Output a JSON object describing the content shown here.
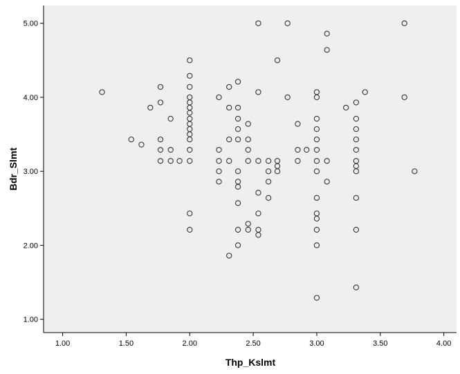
{
  "chart_data": {
    "type": "scatter",
    "title": "",
    "xlabel": "Thp_Kslmt",
    "ylabel": "Bdr_Slmt",
    "xlim": [
      0.85,
      4.1
    ],
    "ylim": [
      0.82,
      5.24
    ],
    "xticks": [
      "1.00",
      "1.50",
      "2.00",
      "2.50",
      "3.00",
      "3.50",
      "4.00"
    ],
    "xtick_values": [
      1.0,
      1.5,
      2.0,
      2.5,
      3.0,
      3.5,
      4.0
    ],
    "yticks": [
      "1.00",
      "2.00",
      "3.00",
      "4.00",
      "5.00"
    ],
    "ytick_values": [
      1.0,
      2.0,
      3.0,
      4.0,
      5.0
    ],
    "grid": false,
    "plot_background": "#efefef",
    "marker": "hollow-circle",
    "points": [
      [
        1.31,
        4.07
      ],
      [
        1.54,
        3.43
      ],
      [
        1.62,
        3.36
      ],
      [
        1.69,
        3.86
      ],
      [
        1.77,
        4.14
      ],
      [
        1.77,
        3.93
      ],
      [
        1.77,
        3.43
      ],
      [
        1.77,
        3.29
      ],
      [
        1.77,
        3.14
      ],
      [
        1.85,
        3.71
      ],
      [
        1.85,
        3.29
      ],
      [
        1.85,
        3.14
      ],
      [
        1.92,
        3.14
      ],
      [
        2.0,
        4.5
      ],
      [
        2.0,
        4.29
      ],
      [
        2.0,
        4.14
      ],
      [
        2.0,
        4.0
      ],
      [
        2.0,
        3.93
      ],
      [
        2.0,
        3.86
      ],
      [
        2.0,
        3.79
      ],
      [
        2.0,
        3.71
      ],
      [
        2.0,
        3.64
      ],
      [
        2.0,
        3.57
      ],
      [
        2.0,
        3.5
      ],
      [
        2.0,
        3.43
      ],
      [
        2.0,
        3.29
      ],
      [
        2.0,
        3.14
      ],
      [
        2.0,
        2.43
      ],
      [
        2.0,
        2.21
      ],
      [
        2.23,
        4.0
      ],
      [
        2.23,
        3.29
      ],
      [
        2.23,
        3.14
      ],
      [
        2.23,
        3.0
      ],
      [
        2.23,
        2.86
      ],
      [
        2.31,
        4.14
      ],
      [
        2.31,
        3.86
      ],
      [
        2.31,
        3.43
      ],
      [
        2.31,
        3.14
      ],
      [
        2.31,
        1.86
      ],
      [
        2.38,
        4.21
      ],
      [
        2.38,
        3.86
      ],
      [
        2.38,
        3.71
      ],
      [
        2.38,
        3.57
      ],
      [
        2.38,
        3.43
      ],
      [
        2.38,
        3.0
      ],
      [
        2.38,
        2.86
      ],
      [
        2.38,
        2.79
      ],
      [
        2.38,
        2.57
      ],
      [
        2.38,
        2.21
      ],
      [
        2.38,
        2.0
      ],
      [
        2.46,
        3.64
      ],
      [
        2.46,
        3.43
      ],
      [
        2.46,
        3.29
      ],
      [
        2.46,
        3.14
      ],
      [
        2.46,
        2.29
      ],
      [
        2.46,
        2.21
      ],
      [
        2.54,
        5.0
      ],
      [
        2.54,
        4.07
      ],
      [
        2.54,
        3.14
      ],
      [
        2.54,
        2.71
      ],
      [
        2.54,
        2.43
      ],
      [
        2.54,
        2.21
      ],
      [
        2.54,
        2.14
      ],
      [
        2.62,
        3.14
      ],
      [
        2.62,
        3.0
      ],
      [
        2.62,
        2.86
      ],
      [
        2.62,
        2.64
      ],
      [
        2.69,
        4.5
      ],
      [
        2.69,
        3.14
      ],
      [
        2.69,
        3.07
      ],
      [
        2.69,
        3.0
      ],
      [
        2.77,
        5.0
      ],
      [
        2.77,
        4.0
      ],
      [
        2.85,
        3.64
      ],
      [
        2.85,
        3.29
      ],
      [
        2.85,
        3.14
      ],
      [
        2.92,
        3.29
      ],
      [
        3.0,
        4.07
      ],
      [
        3.0,
        4.0
      ],
      [
        3.0,
        3.71
      ],
      [
        3.0,
        3.57
      ],
      [
        3.0,
        3.43
      ],
      [
        3.0,
        3.29
      ],
      [
        3.0,
        3.14
      ],
      [
        3.0,
        3.0
      ],
      [
        3.0,
        2.64
      ],
      [
        3.0,
        2.43
      ],
      [
        3.0,
        2.36
      ],
      [
        3.0,
        2.21
      ],
      [
        3.0,
        2.0
      ],
      [
        3.0,
        1.29
      ],
      [
        3.08,
        4.86
      ],
      [
        3.08,
        4.64
      ],
      [
        3.08,
        3.14
      ],
      [
        3.08,
        2.86
      ],
      [
        3.23,
        3.86
      ],
      [
        3.31,
        3.93
      ],
      [
        3.31,
        3.71
      ],
      [
        3.31,
        3.57
      ],
      [
        3.31,
        3.43
      ],
      [
        3.31,
        3.29
      ],
      [
        3.31,
        3.14
      ],
      [
        3.31,
        3.07
      ],
      [
        3.31,
        3.0
      ],
      [
        3.31,
        2.64
      ],
      [
        3.31,
        2.21
      ],
      [
        3.31,
        1.43
      ],
      [
        3.38,
        4.07
      ],
      [
        3.69,
        5.0
      ],
      [
        3.69,
        4.0
      ],
      [
        3.77,
        3.0
      ]
    ]
  }
}
